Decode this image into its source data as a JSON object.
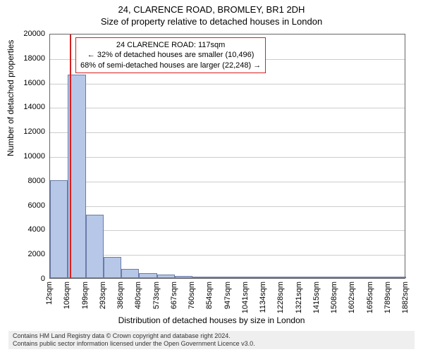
{
  "title_line1": "24, CLARENCE ROAD, BROMLEY, BR1 2DH",
  "title_line2": "Size of property relative to detached houses in London",
  "y_axis_label": "Number of detached properties",
  "x_axis_label": "Distribution of detached houses by size in London",
  "chart": {
    "type": "histogram",
    "background_color": "#ffffff",
    "grid_color": "#cccccc",
    "axis_color": "#666666",
    "bar_fill": "#b7c7e7",
    "bar_border": "#6a7ba8",
    "marker_line_color": "#d62020",
    "marker_x_value": 117,
    "ylim": [
      0,
      20000
    ],
    "ytick_step": 2000,
    "y_ticks": [
      0,
      2000,
      4000,
      6000,
      8000,
      10000,
      12000,
      14000,
      16000,
      18000,
      20000
    ],
    "x_ticks": [
      12,
      106,
      199,
      293,
      386,
      480,
      573,
      667,
      760,
      854,
      947,
      1041,
      1134,
      1228,
      1321,
      1415,
      1508,
      1602,
      1695,
      1789,
      1882
    ],
    "x_tick_suffix": "sqm",
    "xlim": [
      12,
      1882
    ],
    "bar_width_units": 93.5,
    "bars": [
      {
        "x_start": 12,
        "value": 8000
      },
      {
        "x_start": 106,
        "value": 16600
      },
      {
        "x_start": 199,
        "value": 5200
      },
      {
        "x_start": 293,
        "value": 1700
      },
      {
        "x_start": 386,
        "value": 750
      },
      {
        "x_start": 480,
        "value": 420
      },
      {
        "x_start": 573,
        "value": 280
      },
      {
        "x_start": 667,
        "value": 190
      },
      {
        "x_start": 760,
        "value": 140
      },
      {
        "x_start": 854,
        "value": 110
      },
      {
        "x_start": 947,
        "value": 85
      },
      {
        "x_start": 1041,
        "value": 70
      },
      {
        "x_start": 1134,
        "value": 55
      },
      {
        "x_start": 1228,
        "value": 45
      },
      {
        "x_start": 1321,
        "value": 40
      },
      {
        "x_start": 1415,
        "value": 32
      },
      {
        "x_start": 1508,
        "value": 28
      },
      {
        "x_start": 1602,
        "value": 24
      },
      {
        "x_start": 1695,
        "value": 20
      },
      {
        "x_start": 1789,
        "value": 18
      }
    ]
  },
  "annotation": {
    "border_color": "#d62020",
    "line1": "24 CLARENCE ROAD: 117sqm",
    "line2": "← 32% of detached houses are smaller (10,496)",
    "line3": "68% of semi-detached houses are larger (22,248) →"
  },
  "footer": {
    "line1": "Contains HM Land Registry data © Crown copyright and database right 2024.",
    "line2": "Contains public sector information licensed under the Open Government Licence v3.0."
  }
}
